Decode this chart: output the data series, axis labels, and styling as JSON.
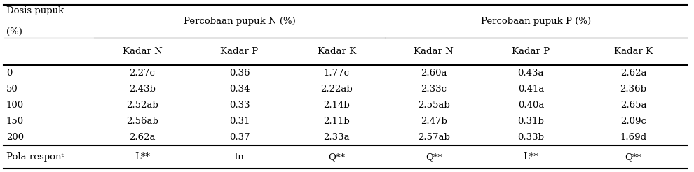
{
  "col_header_row1_left": "Dosis pupuk\n(%)",
  "col_header_row1_n": "Percobaan pupuk N (%)",
  "col_header_row1_p": "Percobaan pupuk P (%)",
  "col_header_row2": [
    "Kadar N",
    "Kadar P",
    "Kadar K",
    "Kadar N",
    "Kadar P",
    "Kadar K"
  ],
  "rows": [
    [
      "0",
      "2.27c",
      "0.36",
      "1.77c",
      "2.60a",
      "0.43a",
      "2.62a"
    ],
    [
      "50",
      "2.43b",
      "0.34",
      "2.22ab",
      "2.33c",
      "0.41a",
      "2.36b"
    ],
    [
      "100",
      "2.52ab",
      "0.33",
      "2.14b",
      "2.55ab",
      "0.40a",
      "2.65a"
    ],
    [
      "150",
      "2.56ab",
      "0.31",
      "2.11b",
      "2.47b",
      "0.31b",
      "2.09c"
    ],
    [
      "200",
      "2.62a",
      "0.37",
      "2.33a",
      "2.57ab",
      "0.33b",
      "1.69d"
    ]
  ],
  "footer_row": [
    "Pola responᵗ",
    "L**",
    "tn",
    "Q**",
    "Q**",
    "L**",
    "Q**"
  ],
  "background_color": "#ffffff",
  "text_color": "#000000",
  "font_size": 9.5
}
